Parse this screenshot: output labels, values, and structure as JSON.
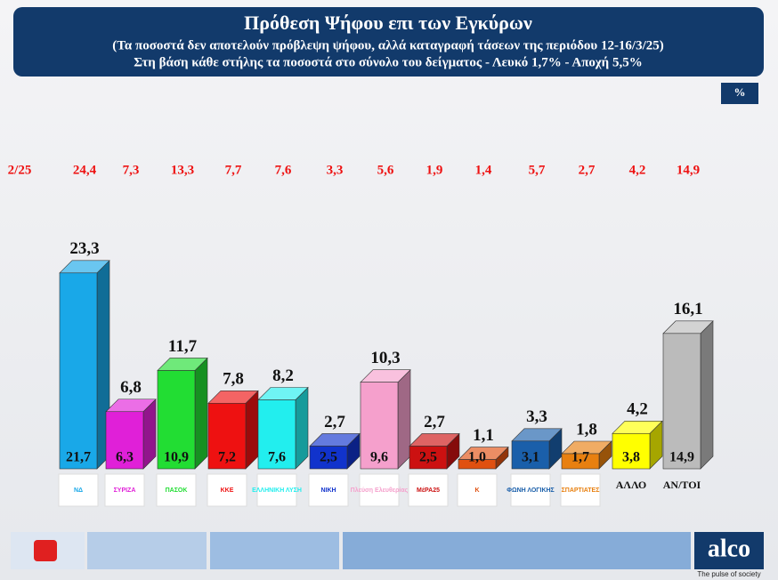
{
  "chart_data": {
    "type": "bar3d",
    "title": "Πρόθεση Ψήφου επι των Εγκύρων",
    "subtitle": [
      "(Τα ποσοστά δεν αποτελούν πρόβλεψη ψήφου, αλλά καταγραφή τάσεων της περιόδου  12-16/3/25)",
      "Στη βάση κάθε στήλης τα ποσοστά στο σύνολο του δείγματος - Λευκό 1,7% - Αποχή 5,5%"
    ],
    "unit": "%",
    "categories": [
      "ΝΔ",
      "ΣΥΡΙΖΑ",
      "ΠΑΣΟΚ",
      "ΚΚΕ",
      "ΕΛΛΗΝΙΚΗ ΛΥΣΗ",
      "ΝΙΚΗ",
      "Πλεύση Ελευθερίας",
      "ΜέΡΑ25",
      "Κ",
      "ΦΩΝΗ ΛΟΓΙΚΗΣ",
      "ΣΠΑΡΤΙΑΤΕΣ",
      "ΑΛΛΟ",
      "ΑΝ/ΤΟΙ"
    ],
    "logo": [
      true,
      true,
      true,
      true,
      true,
      true,
      true,
      true,
      true,
      true,
      true,
      false,
      false
    ],
    "colors": [
      "#19a8e8",
      "#e020d8",
      "#22dd33",
      "#ee1111",
      "#22eeee",
      "#1133cc",
      "#f5a0cc",
      "#cc1111",
      "#e05010",
      "#1a5faa",
      "#e88010",
      "#ffff00",
      "#bbbbbb"
    ],
    "values": [
      23.3,
      6.8,
      11.7,
      7.8,
      8.2,
      2.7,
      10.3,
      2.7,
      1.1,
      3.3,
      1.8,
      4.2,
      16.1
    ],
    "value_labels": [
      "23,3",
      "6,8",
      "11,7",
      "7,8",
      "8,2",
      "2,7",
      "10,3",
      "2,7",
      "1,1",
      "3,3",
      "1,8",
      "4,2",
      "16,1"
    ],
    "base_values": [
      21.7,
      6.3,
      10.9,
      7.2,
      7.6,
      2.5,
      9.6,
      2.5,
      1.0,
      3.1,
      1.7,
      3.8,
      14.9
    ],
    "base_value_labels": [
      "21,7",
      "6,3",
      "10,9",
      "7,2",
      "7,6",
      "2,5",
      "9,6",
      "2,5",
      "1,0",
      "3,1",
      "1,7",
      "3,8",
      "14,9"
    ],
    "previous": {
      "label": "2/25",
      "values": [
        24.4,
        7.3,
        13.3,
        7.7,
        7.6,
        3.3,
        5.6,
        1.9,
        1.4,
        5.7,
        2.7,
        4.2,
        14.9
      ],
      "value_labels": [
        "24,4",
        "7,3",
        "13,3",
        "7,7",
        "7,6",
        "3,3",
        "5,6",
        "1,9",
        "1,4",
        "5,7",
        "2,7",
        "4,2",
        "14,9"
      ]
    }
  },
  "footer": {
    "brand": "alco",
    "tagline": "The pulse of society"
  }
}
